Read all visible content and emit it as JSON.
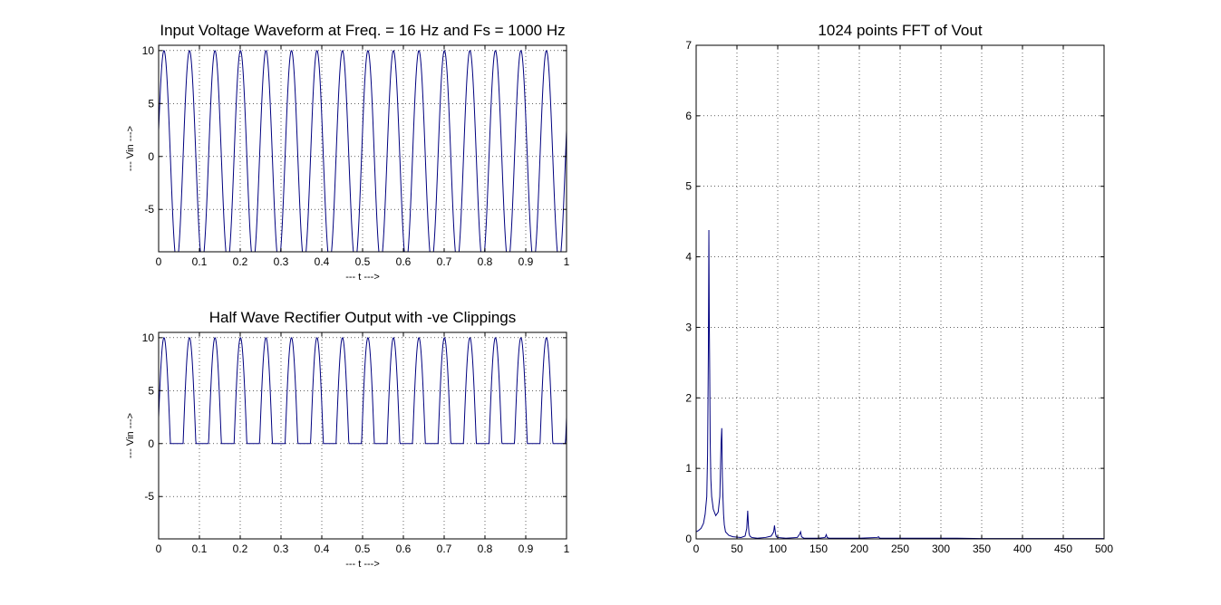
{
  "figure": {
    "background": "#ffffff",
    "line_color": "#00007f"
  },
  "chart_data": [
    {
      "id": "vin",
      "type": "line",
      "title": "Input Voltage Waveform at Freq. = 16 Hz and Fs = 1000 Hz",
      "xlabel": "--- t --->",
      "ylabel": "--- Vin --->",
      "xlim": [
        0,
        1
      ],
      "ylim": [
        -9,
        10.5
      ],
      "xticks": [
        0,
        0.1,
        0.2,
        0.3,
        0.4,
        0.5,
        0.6,
        0.7,
        0.8,
        0.9,
        1
      ],
      "xtick_labels": [
        "0",
        "0.1",
        "0.2",
        "0.3",
        "0.4",
        "0.5",
        "0.6",
        "0.7",
        "0.8",
        "0.9",
        "1"
      ],
      "yticks": [
        -5,
        0,
        5,
        10
      ],
      "ytick_labels": [
        "-5",
        "0",
        "5",
        "10"
      ],
      "grid": true,
      "series": [
        {
          "function": "sine",
          "amplitude": 10,
          "frequency_hz": 16,
          "phase_rad": 0.25,
          "fs_hz": 1000,
          "t_start": 0,
          "t_end": 1,
          "rectified": false
        }
      ]
    },
    {
      "id": "vout",
      "type": "line",
      "title": "Half Wave Rectifier Output with -ve Clippings",
      "xlabel": "--- t --->",
      "ylabel": "--- Vin --->",
      "xlim": [
        0,
        1
      ],
      "ylim": [
        -9,
        10.5
      ],
      "xticks": [
        0,
        0.1,
        0.2,
        0.3,
        0.4,
        0.5,
        0.6,
        0.7,
        0.8,
        0.9,
        1
      ],
      "xtick_labels": [
        "0",
        "0.1",
        "0.2",
        "0.3",
        "0.4",
        "0.5",
        "0.6",
        "0.7",
        "0.8",
        "0.9",
        "1"
      ],
      "yticks": [
        -5,
        0,
        5,
        10
      ],
      "ytick_labels": [
        "-5",
        "0",
        "5",
        "10"
      ],
      "grid": true,
      "series": [
        {
          "function": "sine",
          "amplitude": 10,
          "frequency_hz": 16,
          "phase_rad": 0.25,
          "fs_hz": 1000,
          "t_start": 0,
          "t_end": 1,
          "rectified": true
        }
      ]
    },
    {
      "id": "fft",
      "type": "line",
      "title": "1024 points FFT of Vout",
      "xlabel": "",
      "ylabel": "",
      "xlim": [
        0,
        500
      ],
      "ylim": [
        0,
        7
      ],
      "xticks": [
        0,
        50,
        100,
        150,
        200,
        250,
        300,
        350,
        400,
        450,
        500
      ],
      "xtick_labels": [
        "0",
        "50",
        "100",
        "150",
        "200",
        "250",
        "300",
        "350",
        "400",
        "450",
        "500"
      ],
      "yticks": [
        0,
        1,
        2,
        3,
        4,
        5,
        6,
        7
      ],
      "ytick_labels": [
        "0",
        "1",
        "2",
        "3",
        "4",
        "5",
        "6",
        "7"
      ],
      "grid": true,
      "series": [
        {
          "x": [
            0,
            3,
            6,
            9,
            11,
            13,
            14,
            15,
            15.6,
            16.1,
            16.6,
            17.2,
            18,
            19,
            21,
            24,
            27,
            29,
            30.5,
            31.4,
            32.1,
            32.8,
            33.6,
            34.5,
            36,
            40,
            45,
            55,
            60,
            62,
            63.2,
            64,
            64.8,
            65.8,
            68,
            75,
            85,
            92,
            95,
            96,
            97.2,
            98.2,
            100,
            110,
            124,
            127,
            128,
            129.2,
            132,
            150,
            158,
            159.5,
            160.5,
            163,
            200,
            222,
            223.5,
            225,
            280,
            320,
            350,
            500
          ],
          "y": [
            0.1,
            0.12,
            0.15,
            0.22,
            0.35,
            0.6,
            1.2,
            2.7,
            4.38,
            3.1,
            2.4,
            1.4,
            0.85,
            0.6,
            0.42,
            0.33,
            0.38,
            0.6,
            1.35,
            1.57,
            0.9,
            0.6,
            0.35,
            0.2,
            0.1,
            0.05,
            0.03,
            0.02,
            0.04,
            0.15,
            0.4,
            0.2,
            0.08,
            0.04,
            0.02,
            0.01,
            0.02,
            0.04,
            0.1,
            0.19,
            0.08,
            0.03,
            0.02,
            0.01,
            0.02,
            0.07,
            0.1,
            0.03,
            0.01,
            0.01,
            0.02,
            0.06,
            0.02,
            0.01,
            0.01,
            0.02,
            0.03,
            0.01,
            0.01,
            0.01,
            0.005,
            0.005
          ]
        }
      ]
    }
  ]
}
